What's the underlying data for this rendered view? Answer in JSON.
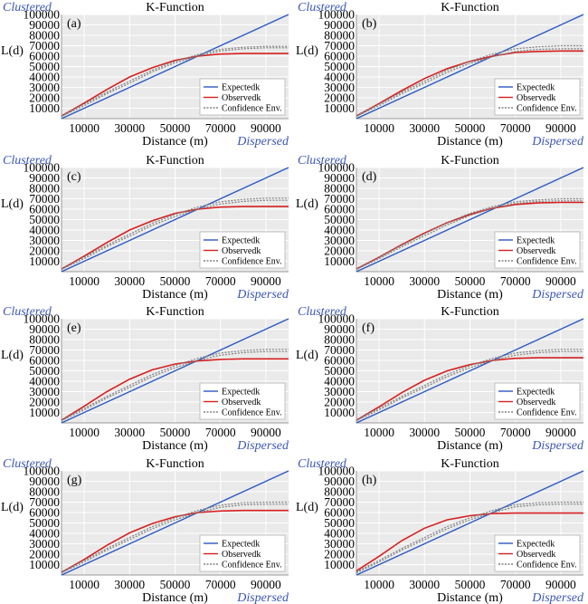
{
  "figure": {
    "panels": [
      {
        "id": "a",
        "panel_label": "(a)"
      },
      {
        "id": "b",
        "panel_label": "(b)"
      },
      {
        "id": "c",
        "panel_label": "(c)"
      },
      {
        "id": "d",
        "panel_label": "(d)"
      },
      {
        "id": "e",
        "panel_label": "(e)"
      },
      {
        "id": "f",
        "panel_label": "(f)"
      },
      {
        "id": "g",
        "panel_label": "(g)"
      },
      {
        "id": "h",
        "panel_label": "(h)"
      }
    ]
  },
  "colors": {
    "expected": "#2b59c3",
    "observed": "#d62020",
    "envelope": "#808080",
    "plot_background": "#eaeaea",
    "grid": "#ffffff",
    "corner_label": "#3b56b5"
  },
  "chart_data": [
    {
      "type": "line",
      "panel_label": "(a)",
      "title": "K-Function",
      "xlabel": "Distance (m)",
      "ylabel": "L(d)",
      "top_left_label": "Clustered",
      "bottom_right_label": "Dispersed",
      "xlim": [
        0,
        100000
      ],
      "ylim": [
        0,
        100000
      ],
      "xticks": [
        10000,
        30000,
        50000,
        70000,
        90000
      ],
      "yticks": [
        10000,
        20000,
        30000,
        40000,
        50000,
        60000,
        70000,
        80000,
        90000,
        100000
      ],
      "grid": true,
      "legend_position": "bottom-right",
      "x": [
        0,
        10000,
        20000,
        30000,
        40000,
        50000,
        60000,
        70000,
        80000,
        90000,
        100000
      ],
      "series": [
        {
          "name": "Expectedk",
          "style": "solid",
          "values": [
            0,
            10000,
            20000,
            30000,
            40000,
            50000,
            60000,
            70000,
            80000,
            90000,
            100000
          ]
        },
        {
          "name": "Observedk",
          "style": "solid",
          "values": [
            2500,
            15000,
            28000,
            40000,
            49000,
            56000,
            60000,
            62000,
            62500,
            62500,
            62500
          ]
        },
        {
          "name": "Confidence Env.",
          "style": "dotted",
          "values": [
            2200,
            12500,
            24000,
            34000,
            45000,
            53500,
            60000,
            65000,
            67000,
            68000,
            68000
          ]
        },
        {
          "name": "",
          "style": "dotted",
          "values": [
            3000,
            14000,
            25500,
            36000,
            46500,
            55000,
            61500,
            66500,
            68500,
            69500,
            69500
          ]
        }
      ]
    },
    {
      "type": "line",
      "panel_label": "(b)",
      "title": "K-Function",
      "xlabel": "Distance (m)",
      "ylabel": "L(d)",
      "top_left_label": "Clustered",
      "bottom_right_label": "Dispersed",
      "xlim": [
        0,
        100000
      ],
      "ylim": [
        0,
        100000
      ],
      "xticks": [
        10000,
        30000,
        50000,
        70000,
        90000
      ],
      "yticks": [
        10000,
        20000,
        30000,
        40000,
        50000,
        60000,
        70000,
        80000,
        90000,
        100000
      ],
      "grid": true,
      "legend_position": "bottom-right",
      "x": [
        0,
        10000,
        20000,
        30000,
        40000,
        50000,
        60000,
        70000,
        80000,
        90000,
        100000
      ],
      "series": [
        {
          "name": "Expectedk",
          "style": "solid",
          "values": [
            0,
            10000,
            20000,
            30000,
            40000,
            50000,
            60000,
            70000,
            80000,
            90000,
            100000
          ]
        },
        {
          "name": "Observedk",
          "style": "solid",
          "values": [
            2500,
            14500,
            27000,
            38500,
            48000,
            55000,
            60000,
            63500,
            64500,
            65000,
            65000
          ]
        },
        {
          "name": "Confidence Env.",
          "style": "dotted",
          "values": [
            2200,
            12500,
            24000,
            34000,
            44500,
            53000,
            59500,
            64500,
            66500,
            67000,
            67000
          ]
        },
        {
          "name": "",
          "style": "dotted",
          "values": [
            3000,
            14000,
            25500,
            36000,
            46500,
            55000,
            62000,
            67000,
            69000,
            70000,
            70000
          ]
        }
      ]
    },
    {
      "type": "line",
      "panel_label": "(c)",
      "title": "K-Function",
      "xlabel": "Distance (m)",
      "ylabel": "L(d)",
      "top_left_label": "Clustered",
      "bottom_right_label": "Dispersed",
      "xlim": [
        0,
        100000
      ],
      "ylim": [
        0,
        100000
      ],
      "xticks": [
        10000,
        30000,
        50000,
        70000,
        90000
      ],
      "yticks": [
        10000,
        20000,
        30000,
        40000,
        50000,
        60000,
        70000,
        80000,
        90000,
        100000
      ],
      "grid": true,
      "legend_position": "bottom-right",
      "x": [
        0,
        10000,
        20000,
        30000,
        40000,
        50000,
        60000,
        70000,
        80000,
        90000,
        100000
      ],
      "series": [
        {
          "name": "Expectedk",
          "style": "solid",
          "values": [
            0,
            10000,
            20000,
            30000,
            40000,
            50000,
            60000,
            70000,
            80000,
            90000,
            100000
          ]
        },
        {
          "name": "Observedk",
          "style": "solid",
          "values": [
            2500,
            15000,
            28000,
            40000,
            49000,
            56000,
            60000,
            62000,
            62500,
            62500,
            62500
          ]
        },
        {
          "name": "Confidence Env.",
          "style": "dotted",
          "values": [
            2200,
            12500,
            24000,
            34000,
            44500,
            53000,
            60000,
            65000,
            67500,
            68500,
            68500
          ]
        },
        {
          "name": "",
          "style": "dotted",
          "values": [
            3000,
            14000,
            25500,
            36000,
            46500,
            55000,
            62000,
            67000,
            69500,
            70500,
            70500
          ]
        }
      ]
    },
    {
      "type": "line",
      "panel_label": "(d)",
      "title": "K-Function",
      "xlabel": "Distance (m)",
      "ylabel": "L(d)",
      "top_left_label": "Clustered",
      "bottom_right_label": "Dispersed",
      "xlim": [
        0,
        100000
      ],
      "ylim": [
        0,
        100000
      ],
      "xticks": [
        10000,
        30000,
        50000,
        70000,
        90000
      ],
      "yticks": [
        10000,
        20000,
        30000,
        40000,
        50000,
        60000,
        70000,
        80000,
        90000,
        100000
      ],
      "grid": true,
      "legend_position": "bottom-right",
      "x": [
        0,
        10000,
        20000,
        30000,
        40000,
        50000,
        60000,
        70000,
        80000,
        90000,
        100000
      ],
      "series": [
        {
          "name": "Expectedk",
          "style": "solid",
          "values": [
            0,
            10000,
            20000,
            30000,
            40000,
            50000,
            60000,
            70000,
            80000,
            90000,
            100000
          ]
        },
        {
          "name": "Observedk",
          "style": "solid",
          "values": [
            2500,
            14000,
            26000,
            37000,
            47000,
            55000,
            61000,
            64500,
            66000,
            66500,
            66500
          ]
        },
        {
          "name": "Confidence Env.",
          "style": "dotted",
          "values": [
            2200,
            12500,
            24000,
            34500,
            45000,
            54000,
            61000,
            65500,
            67500,
            68000,
            68000
          ]
        },
        {
          "name": "",
          "style": "dotted",
          "values": [
            3000,
            14000,
            25500,
            36500,
            47000,
            56000,
            62500,
            67000,
            69000,
            70000,
            70000
          ]
        }
      ]
    },
    {
      "type": "line",
      "panel_label": "(e)",
      "title": "K-Function",
      "xlabel": "Distance (m)",
      "ylabel": "L(d)",
      "top_left_label": "Clustered",
      "bottom_right_label": "Dispersed",
      "xlim": [
        0,
        100000
      ],
      "ylim": [
        0,
        100000
      ],
      "xticks": [
        10000,
        30000,
        50000,
        70000,
        90000
      ],
      "yticks": [
        10000,
        20000,
        30000,
        40000,
        50000,
        60000,
        70000,
        80000,
        90000,
        100000
      ],
      "grid": true,
      "legend_position": "bottom-right",
      "x": [
        0,
        10000,
        20000,
        30000,
        40000,
        50000,
        60000,
        70000,
        80000,
        90000,
        100000
      ],
      "series": [
        {
          "name": "Expectedk",
          "style": "solid",
          "values": [
            0,
            10000,
            20000,
            30000,
            40000,
            50000,
            60000,
            70000,
            80000,
            90000,
            100000
          ]
        },
        {
          "name": "Observedk",
          "style": "solid",
          "values": [
            2500,
            16000,
            30000,
            42000,
            51000,
            56500,
            59500,
            61000,
            61500,
            61500,
            61500
          ]
        },
        {
          "name": "Confidence Env.",
          "style": "dotted",
          "values": [
            2200,
            12500,
            24000,
            34000,
            44500,
            53000,
            60000,
            65000,
            67500,
            68500,
            68500
          ]
        },
        {
          "name": "",
          "style": "dotted",
          "values": [
            3000,
            14000,
            25500,
            36000,
            46500,
            55000,
            62000,
            67000,
            69500,
            70500,
            70500
          ]
        }
      ]
    },
    {
      "type": "line",
      "panel_label": "(f)",
      "title": "K-Function",
      "xlabel": "Distance (m)",
      "ylabel": "L(d)",
      "top_left_label": "Clustered",
      "bottom_right_label": "Dispersed",
      "xlim": [
        0,
        100000
      ],
      "ylim": [
        0,
        100000
      ],
      "xticks": [
        10000,
        30000,
        50000,
        70000,
        90000
      ],
      "yticks": [
        10000,
        20000,
        30000,
        40000,
        50000,
        60000,
        70000,
        80000,
        90000,
        100000
      ],
      "grid": true,
      "legend_position": "bottom-right",
      "x": [
        0,
        10000,
        20000,
        30000,
        40000,
        50000,
        60000,
        70000,
        80000,
        90000,
        100000
      ],
      "series": [
        {
          "name": "Expectedk",
          "style": "solid",
          "values": [
            0,
            10000,
            20000,
            30000,
            40000,
            50000,
            60000,
            70000,
            80000,
            90000,
            100000
          ]
        },
        {
          "name": "Observedk",
          "style": "solid",
          "values": [
            2500,
            15500,
            29000,
            41000,
            50000,
            56000,
            60000,
            62000,
            62500,
            62500,
            62500
          ]
        },
        {
          "name": "Confidence Env.",
          "style": "dotted",
          "values": [
            2200,
            12500,
            24000,
            34000,
            44500,
            53000,
            60000,
            65000,
            67500,
            68500,
            68500
          ]
        },
        {
          "name": "",
          "style": "dotted",
          "values": [
            3000,
            14000,
            25500,
            36000,
            46500,
            55000,
            62000,
            67000,
            69500,
            70500,
            70500
          ]
        }
      ]
    },
    {
      "type": "line",
      "panel_label": "(g)",
      "title": "K-Function",
      "xlabel": "Distance (m)",
      "ylabel": "L(d)",
      "top_left_label": "Clustered",
      "bottom_right_label": "Dispersed",
      "xlim": [
        0,
        100000
      ],
      "ylim": [
        0,
        100000
      ],
      "xticks": [
        10000,
        30000,
        50000,
        70000,
        90000
      ],
      "yticks": [
        10000,
        20000,
        30000,
        40000,
        50000,
        60000,
        70000,
        80000,
        90000,
        100000
      ],
      "grid": true,
      "legend_position": "bottom-right",
      "x": [
        0,
        10000,
        20000,
        30000,
        40000,
        50000,
        60000,
        70000,
        80000,
        90000,
        100000
      ],
      "series": [
        {
          "name": "Expectedk",
          "style": "solid",
          "values": [
            0,
            10000,
            20000,
            30000,
            40000,
            50000,
            60000,
            70000,
            80000,
            90000,
            100000
          ]
        },
        {
          "name": "Observedk",
          "style": "solid",
          "values": [
            2500,
            15000,
            28500,
            40500,
            49500,
            56000,
            60000,
            61500,
            62000,
            62000,
            62000
          ]
        },
        {
          "name": "Confidence Env.",
          "style": "dotted",
          "values": [
            2200,
            12500,
            24000,
            34000,
            44500,
            53000,
            60000,
            65000,
            67500,
            68000,
            68000
          ]
        },
        {
          "name": "",
          "style": "dotted",
          "values": [
            3000,
            14000,
            25500,
            36000,
            46500,
            55000,
            62000,
            67000,
            69500,
            70000,
            70000
          ]
        }
      ]
    },
    {
      "type": "line",
      "panel_label": "(h)",
      "title": "K-Function",
      "xlabel": "Distance (m)",
      "ylabel": "L(d)",
      "top_left_label": "Clustered",
      "bottom_right_label": "Dispersed",
      "xlim": [
        0,
        100000
      ],
      "ylim": [
        0,
        100000
      ],
      "xticks": [
        10000,
        30000,
        50000,
        70000,
        90000
      ],
      "yticks": [
        10000,
        20000,
        30000,
        40000,
        50000,
        60000,
        70000,
        80000,
        90000,
        100000
      ],
      "grid": true,
      "legend_position": "bottom-right",
      "x": [
        0,
        10000,
        20000,
        30000,
        40000,
        50000,
        60000,
        70000,
        80000,
        90000,
        100000
      ],
      "series": [
        {
          "name": "Expectedk",
          "style": "solid",
          "values": [
            0,
            10000,
            20000,
            30000,
            40000,
            50000,
            60000,
            70000,
            80000,
            90000,
            100000
          ]
        },
        {
          "name": "Observedk",
          "style": "solid",
          "values": [
            4000,
            18000,
            33000,
            45000,
            53000,
            57000,
            59000,
            59500,
            59500,
            59500,
            59500
          ]
        },
        {
          "name": "Confidence Env.",
          "style": "dotted",
          "values": [
            2200,
            12500,
            24000,
            34000,
            44500,
            53000,
            60000,
            65500,
            67500,
            68000,
            68000
          ]
        },
        {
          "name": "",
          "style": "dotted",
          "values": [
            3000,
            14000,
            25500,
            36000,
            46500,
            55000,
            62000,
            67500,
            69500,
            70000,
            70000
          ]
        }
      ]
    }
  ]
}
